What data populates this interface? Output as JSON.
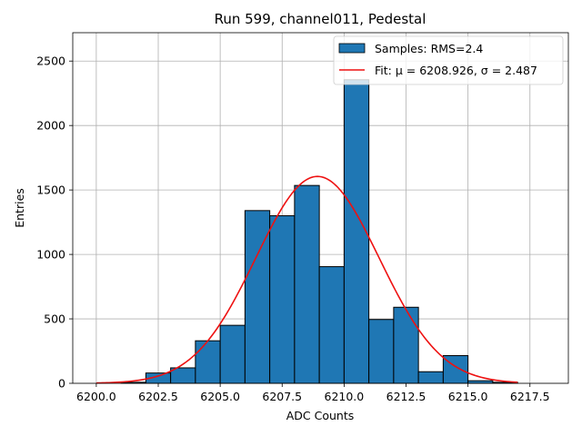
{
  "chart_data": {
    "type": "bar",
    "title": "Run 599, channel011, Pedestal",
    "xlabel": "ADC Counts",
    "ylabel": "Entries",
    "xlim": [
      6199.05,
      6219.05
    ],
    "ylim": [
      0,
      2720
    ],
    "grid": true,
    "legend_position": "top-right",
    "bin_width": 1,
    "bins": [
      {
        "x0": 6200,
        "count": 0
      },
      {
        "x0": 6201,
        "count": 8
      },
      {
        "x0": 6202,
        "count": 80
      },
      {
        "x0": 6203,
        "count": 120
      },
      {
        "x0": 6204,
        "count": 330
      },
      {
        "x0": 6205,
        "count": 450
      },
      {
        "x0": 6206,
        "count": 1340
      },
      {
        "x0": 6207,
        "count": 1300
      },
      {
        "x0": 6208,
        "count": 1535
      },
      {
        "x0": 6209,
        "count": 905
      },
      {
        "x0": 6210,
        "count": 2355
      },
      {
        "x0": 6211,
        "count": 495
      },
      {
        "x0": 6212,
        "count": 590
      },
      {
        "x0": 6213,
        "count": 90
      },
      {
        "x0": 6214,
        "count": 215
      },
      {
        "x0": 6215,
        "count": 20
      },
      {
        "x0": 6216,
        "count": 8
      },
      {
        "x0": 6217,
        "count": 0
      },
      {
        "x0": 6218,
        "count": 0
      }
    ],
    "xticks": [
      {
        "value": 6200.0,
        "label": "6200.0"
      },
      {
        "value": 6202.5,
        "label": "6202.5"
      },
      {
        "value": 6205.0,
        "label": "6205.0"
      },
      {
        "value": 6207.5,
        "label": "6207.5"
      },
      {
        "value": 6210.0,
        "label": "6210.0"
      },
      {
        "value": 6212.5,
        "label": "6212.5"
      },
      {
        "value": 6215.0,
        "label": "6215.0"
      },
      {
        "value": 6217.5,
        "label": "6217.5"
      }
    ],
    "yticks": [
      {
        "value": 0,
        "label": "0"
      },
      {
        "value": 500,
        "label": "500"
      },
      {
        "value": 1000,
        "label": "1000"
      },
      {
        "value": 1500,
        "label": "1500"
      },
      {
        "value": 2000,
        "label": "2000"
      },
      {
        "value": 2500,
        "label": "2500"
      }
    ],
    "fit": {
      "mu": 6208.926,
      "sigma": 2.487,
      "amplitude": 1605,
      "x_range": [
        6200,
        6217
      ]
    },
    "series": [
      {
        "name": "Samples: RMS=2.4",
        "kind": "histogram",
        "color": "#1f77b4",
        "edge_color": "#000000"
      },
      {
        "name": "Fit: μ = 6208.926, σ = 2.487",
        "kind": "line",
        "color": "#ee1111"
      }
    ],
    "legend": [
      {
        "label": "Samples: RMS=2.4",
        "kind": "patch",
        "color": "#1f77b4"
      },
      {
        "label": "Fit: μ = 6208.926, σ = 2.487",
        "kind": "line",
        "color": "#ee1111"
      }
    ]
  },
  "colors": {
    "bar_fill": "#1f77b4",
    "bar_edge": "#000000",
    "fit_line": "#ee1111",
    "grid": "#b0b0b0",
    "axes": "#000000"
  }
}
